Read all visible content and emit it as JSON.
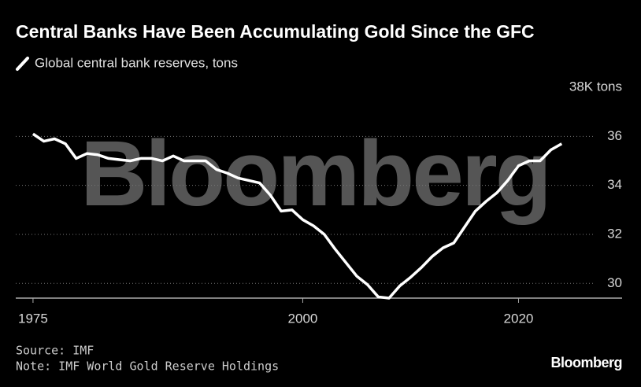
{
  "chart_data": {
    "type": "line",
    "title": "Central Banks Have Been Accumulating Gold Since the GFC",
    "watermark": "Bloomberg",
    "source": "Source: IMF",
    "note": "Note: IMF World Gold Reserve Holdings",
    "logo": "Bloomberg",
    "x": [
      1975,
      1976,
      1977,
      1978,
      1979,
      1980,
      1981,
      1982,
      1983,
      1984,
      1985,
      1986,
      1987,
      1988,
      1989,
      1990,
      1991,
      1992,
      1993,
      1994,
      1995,
      1996,
      1997,
      1998,
      1999,
      2000,
      2001,
      2002,
      2003,
      2004,
      2005,
      2006,
      2007,
      2008,
      2009,
      2010,
      2011,
      2012,
      2013,
      2014,
      2015,
      2016,
      2017,
      2018,
      2019,
      2020,
      2021,
      2022,
      2023,
      2024
    ],
    "series": [
      {
        "name": "Global central bank reserves, tons",
        "color": "#ffffff",
        "values": [
          36.1,
          35.8,
          35.9,
          35.7,
          35.1,
          35.3,
          35.25,
          35.1,
          35.05,
          35.0,
          35.1,
          35.1,
          35.0,
          35.2,
          35.0,
          35.0,
          35.0,
          34.65,
          34.5,
          34.3,
          34.2,
          34.1,
          33.6,
          32.95,
          33.0,
          32.6,
          32.35,
          32.0,
          31.4,
          30.85,
          30.3,
          29.95,
          29.45,
          29.4,
          29.9,
          30.25,
          30.65,
          31.1,
          31.45,
          31.65,
          32.3,
          32.95,
          33.35,
          33.7,
          34.2,
          34.8,
          35.0,
          35.0,
          35.45,
          35.7
        ]
      }
    ],
    "xlim": [
      1973.4,
      2029.6
    ],
    "xticks": [
      1975,
      2000,
      2020
    ],
    "ylim": [
      29.4,
      38.4
    ],
    "yticks": [
      30,
      32,
      34,
      36,
      {
        "value": 38,
        "label": "38K tons"
      }
    ],
    "grid": true
  }
}
